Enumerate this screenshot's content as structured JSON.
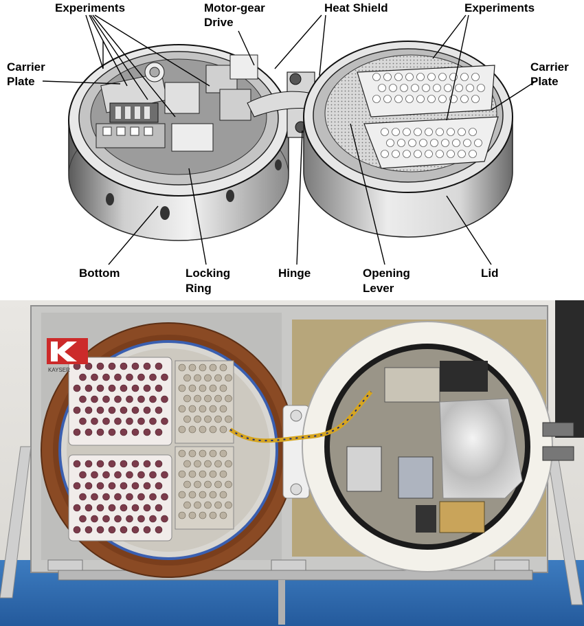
{
  "diagram": {
    "labels": {
      "experiments_left": "Experiments",
      "motor_gear_1": "Motor-gear",
      "motor_gear_2": "Drive",
      "heat_shield": "Heat Shield",
      "experiments_right": "Experiments",
      "carrier_left_1": "Carrier",
      "carrier_left_2": "Plate",
      "carrier_right_1": "Carrier",
      "carrier_right_2": "Plate",
      "bottom": "Bottom",
      "locking_ring_1": "Locking",
      "locking_ring_2": "Ring",
      "hinge": "Hinge",
      "opening_lever_1": "Opening",
      "opening_lever_2": "Lever",
      "lid": "Lid"
    }
  },
  "photo": {
    "logo_text": "KAYSER",
    "colors": {
      "frame": "#c9c9c7",
      "wall": "#e4e2de",
      "bench": "#2f6fb6",
      "wood_ring": "#8a4a24",
      "white_plate": "#f1ecea",
      "white_ring": "#f3f1ea",
      "gold": "#c9a45a",
      "logo_red": "#cc2a2a"
    }
  }
}
